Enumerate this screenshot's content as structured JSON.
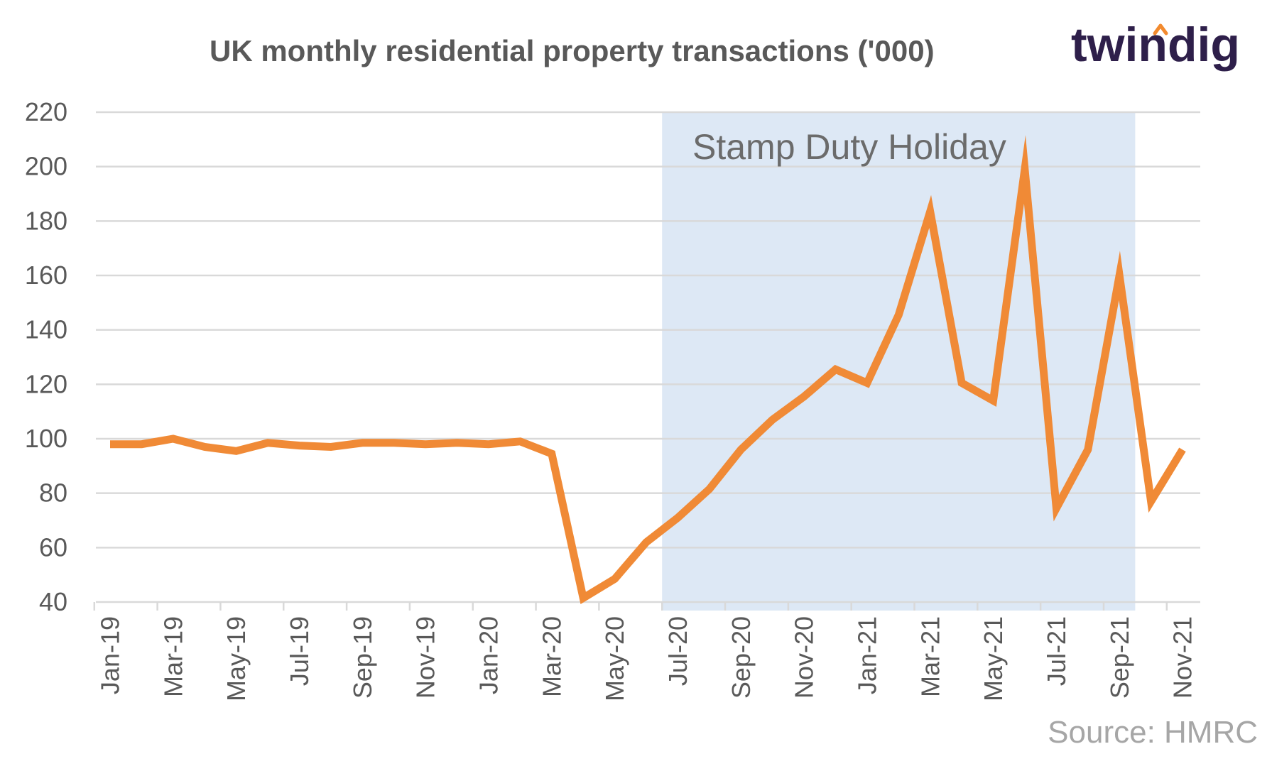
{
  "logo": {
    "text": "twindig",
    "colors": {
      "text": "#2e1f4a",
      "roof": "#f28a2e"
    }
  },
  "source": "Source: HMRC",
  "colors": {
    "line": "#f08a36",
    "band": "#dde8f5",
    "grid": "#d9d9d9",
    "title": "#595959",
    "tick": "#595959",
    "band_label": "#6b6b6b",
    "source": "#a6a6a6"
  },
  "chart_data": {
    "type": "line",
    "title": "UK monthly residential property transactions ('000)",
    "xlabel": "",
    "ylabel": "",
    "ylim": [
      40,
      220
    ],
    "yticks": [
      40,
      60,
      80,
      100,
      120,
      140,
      160,
      180,
      200,
      220
    ],
    "grid": true,
    "legend": "none",
    "x": [
      "Jan-19",
      "Feb-19",
      "Mar-19",
      "Apr-19",
      "May-19",
      "Jun-19",
      "Jul-19",
      "Aug-19",
      "Sep-19",
      "Oct-19",
      "Nov-19",
      "Dec-19",
      "Jan-20",
      "Feb-20",
      "Mar-20",
      "Apr-20",
      "May-20",
      "Jun-20",
      "Jul-20",
      "Aug-20",
      "Sep-20",
      "Oct-20",
      "Nov-20",
      "Dec-20",
      "Jan-21",
      "Feb-21",
      "Mar-21",
      "Apr-21",
      "May-21",
      "Jun-21",
      "Jul-21",
      "Aug-21",
      "Sep-21",
      "Oct-21",
      "Nov-21"
    ],
    "x_tick_labels": [
      "Jan-19",
      "Mar-19",
      "May-19",
      "Jul-19",
      "Sep-19",
      "Nov-19",
      "Jan-20",
      "Mar-20",
      "May-20",
      "Jul-20",
      "Sep-20",
      "Nov-20",
      "Jan-21",
      "Mar-21",
      "May-21",
      "Jul-21",
      "Sep-21",
      "Nov-21"
    ],
    "series": [
      {
        "values": [
          98,
          98,
          100,
          97,
          95.5,
          98.5,
          97.5,
          97,
          98.5,
          98.5,
          98,
          98.5,
          98,
          99,
          94.5,
          41.5,
          48.5,
          62,
          71,
          81.5,
          96,
          107,
          115.5,
          125.5,
          120.5,
          145.5,
          183.5,
          120.5,
          114,
          199,
          74.5,
          96,
          160,
          77,
          96
        ]
      }
    ],
    "annotations": [
      {
        "text": "Stamp Duty Holiday",
        "x_start": "Jul-20",
        "x_end": "Sep-21"
      }
    ]
  }
}
